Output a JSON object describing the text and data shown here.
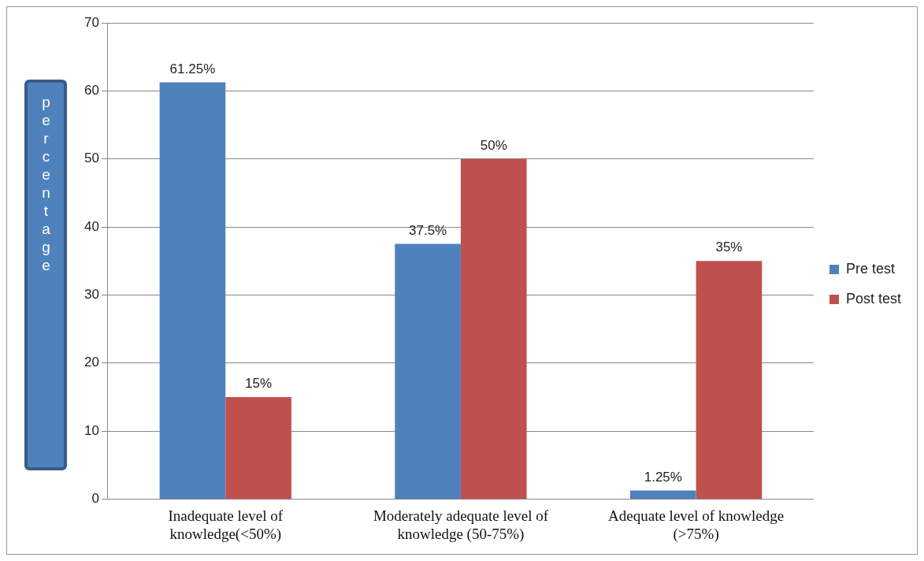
{
  "chart_data": {
    "type": "bar",
    "ylabel": "percentage",
    "categories": [
      "Inadequate level of knowledge(<50%)",
      "Moderately adequate level of knowledge (50-75%)",
      "Adequate level of knowledge (>75%)"
    ],
    "series": [
      {
        "name": "Pre test",
        "color": "#4f81bd",
        "values": [
          61.25,
          37.5,
          1.25
        ],
        "value_labels": [
          "61.25%",
          "37.5%",
          "1.25%"
        ]
      },
      {
        "name": "Post test",
        "color": "#c0504d",
        "values": [
          15,
          50,
          35
        ],
        "value_labels": [
          "15%",
          "50%",
          "35%"
        ]
      }
    ],
    "ylim": [
      0,
      70
    ],
    "yticks": [
      0,
      10,
      20,
      30,
      40,
      50,
      60,
      70
    ],
    "grid": "y",
    "legend": "right"
  }
}
